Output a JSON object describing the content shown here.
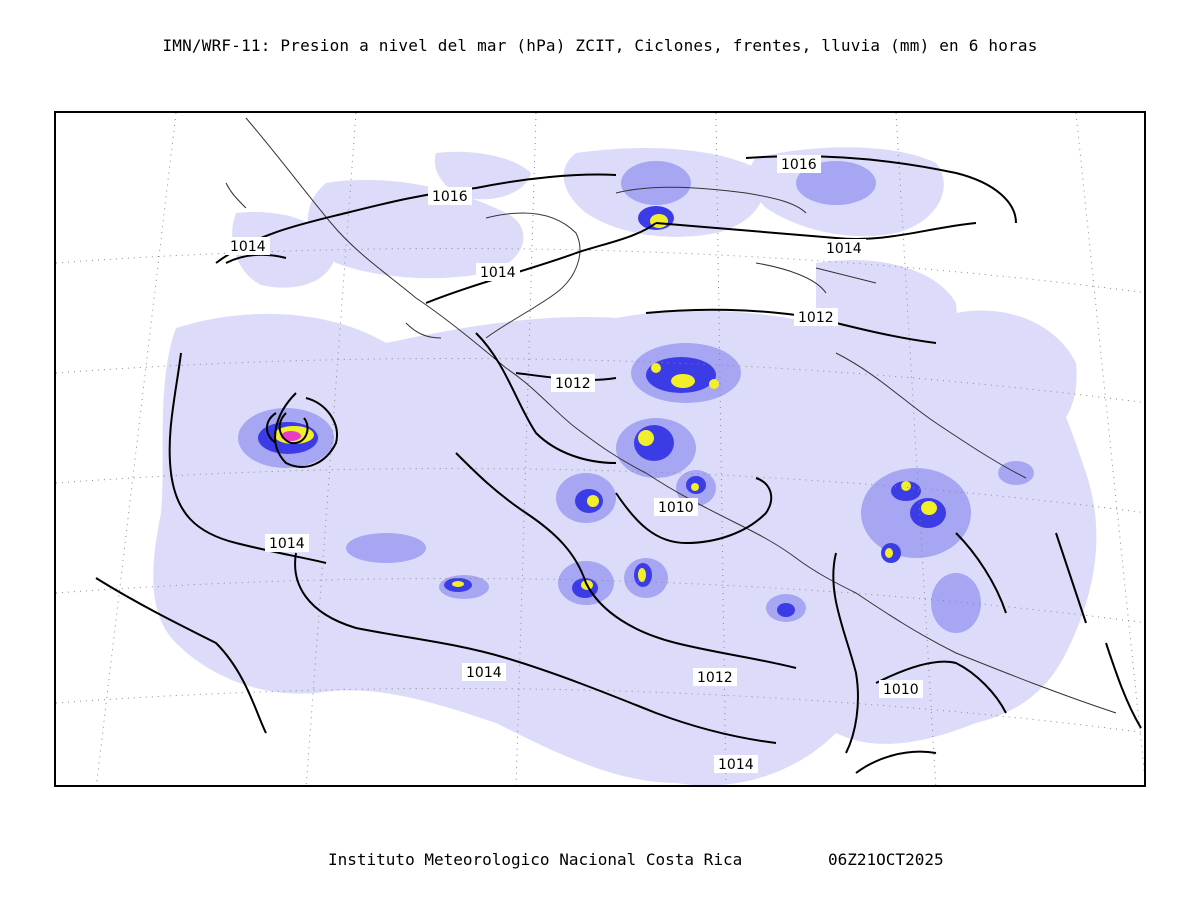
{
  "header": {
    "title": "IMN/WRF-11: Presion a nivel del mar (hPa) ZCIT, Ciclones, frentes, lluvia (mm) en 6 horas"
  },
  "footer": {
    "institution": "Instituto Meteorologico Nacional Costa Rica",
    "timestamp": "06Z21OCT2025"
  },
  "map": {
    "isobar_labels": [
      "1016",
      "1016",
      "1014",
      "1014",
      "1014",
      "1012",
      "1012",
      "1010",
      "1014",
      "1012",
      "1010",
      "1014",
      "1014"
    ],
    "colors": {
      "rain_light": "#dcdcfa",
      "rain_medium": "#a6a6f2",
      "rain_heavy": "#3c3ce6",
      "rain_peak": "#f2ef2a",
      "rain_extreme": "#e83cc8",
      "isobar": "#000000",
      "coastline": "#333333"
    }
  }
}
